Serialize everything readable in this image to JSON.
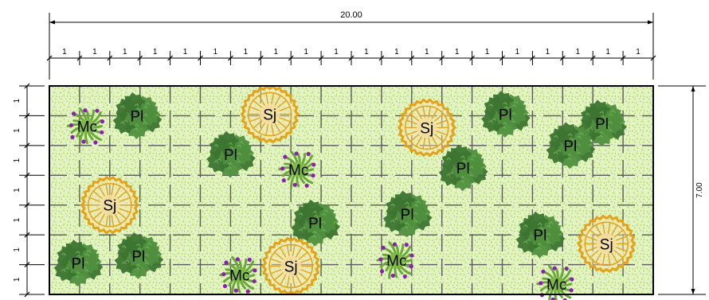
{
  "dimensions": {
    "total_width_label": "20.00",
    "total_height_label": "7.00",
    "top_segments": [
      "1",
      "1",
      "1",
      "1",
      "1",
      "1",
      "1",
      "1",
      "1",
      "1",
      "1",
      "1",
      "1",
      "1",
      "1",
      "1",
      "1",
      "1",
      "1",
      "1"
    ],
    "left_segments": [
      "1",
      "1",
      "1",
      "1",
      "1",
      "1",
      "1"
    ]
  },
  "colors": {
    "background_fill": "#e3f3c6",
    "grass_speckle": "#b3d86c",
    "grid_dash": "#5a5a5a",
    "shrub_pl": "#4f8f3e",
    "shrub_pl_dark": "#3c7430",
    "shrub_sj_ring": "#e3a21a",
    "shrub_mc_green": "#6aa83a",
    "shrub_mc_flower": "#8a1fb0"
  },
  "legend_codes": {
    "pl": "Pl",
    "sj": "Sj",
    "mc": "Mc"
  },
  "plants": [
    {
      "type": "mc",
      "label": "Mc",
      "x": 1.25,
      "y": 1.35
    },
    {
      "type": "pl",
      "label": "Pl",
      "x": 2.9,
      "y": 1.0
    },
    {
      "type": "sj",
      "label": "Sj",
      "x": 7.3,
      "y": 0.95
    },
    {
      "type": "sj",
      "label": "Sj",
      "x": 12.5,
      "y": 1.4
    },
    {
      "type": "pl",
      "label": "Pl",
      "x": 15.1,
      "y": 0.95
    },
    {
      "type": "pl",
      "label": "Pl",
      "x": 18.3,
      "y": 1.25
    },
    {
      "type": "pl",
      "label": "Pl",
      "x": 17.25,
      "y": 2.0
    },
    {
      "type": "pl",
      "label": "Pl",
      "x": 6.0,
      "y": 2.3
    },
    {
      "type": "mc",
      "label": "Mc",
      "x": 8.25,
      "y": 2.8
    },
    {
      "type": "pl",
      "label": "Pl",
      "x": 13.7,
      "y": 2.75
    },
    {
      "type": "sj",
      "label": "Sj",
      "x": 2.0,
      "y": 4.0
    },
    {
      "type": "pl",
      "label": "Pl",
      "x": 8.8,
      "y": 4.6
    },
    {
      "type": "pl",
      "label": "Pl",
      "x": 11.85,
      "y": 4.3
    },
    {
      "type": "pl",
      "label": "Pl",
      "x": 16.25,
      "y": 5.0
    },
    {
      "type": "sj",
      "label": "Sj",
      "x": 18.45,
      "y": 5.3
    },
    {
      "type": "pl",
      "label": "Pl",
      "x": 0.95,
      "y": 5.95
    },
    {
      "type": "pl",
      "label": "Pl",
      "x": 2.95,
      "y": 5.7
    },
    {
      "type": "mc",
      "label": "Mc",
      "x": 6.3,
      "y": 6.35
    },
    {
      "type": "sj",
      "label": "Sj",
      "x": 8.0,
      "y": 6.05
    },
    {
      "type": "mc",
      "label": "Mc",
      "x": 11.5,
      "y": 5.85
    },
    {
      "type": "mc",
      "label": "Mc",
      "x": 16.8,
      "y": 6.65
    }
  ]
}
